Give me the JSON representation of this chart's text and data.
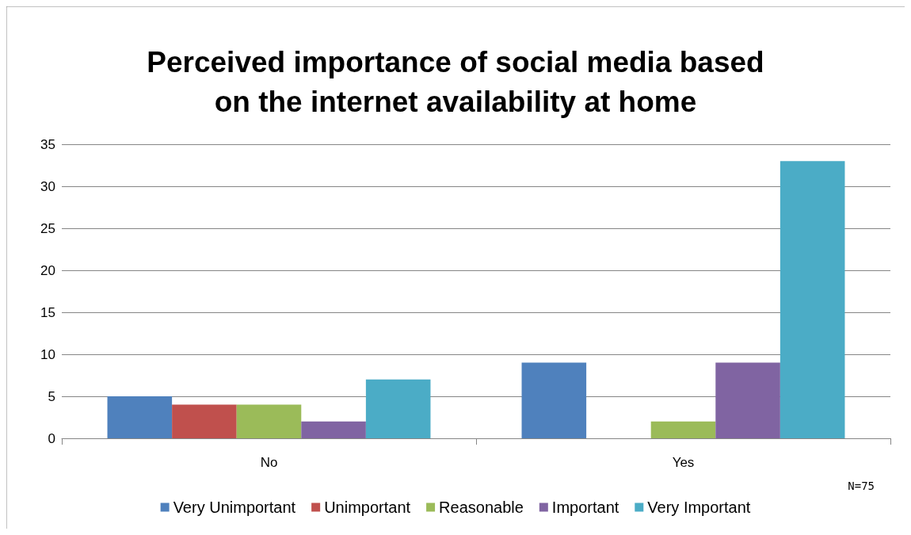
{
  "chart_data": {
    "type": "bar",
    "title": "Perceived importance of social media based\non the internet availability at home",
    "categories": [
      "No",
      "Yes"
    ],
    "series": [
      {
        "name": "Very Unimportant",
        "color": "#4f81bd",
        "values": [
          5,
          9
        ]
      },
      {
        "name": "Unimportant",
        "color": "#c0504d",
        "values": [
          4,
          0
        ]
      },
      {
        "name": "Reasonable",
        "color": "#9bbb59",
        "values": [
          4,
          2
        ]
      },
      {
        "name": "Important",
        "color": "#8064a2",
        "values": [
          2,
          9
        ]
      },
      {
        "name": "Very Important",
        "color": "#4bacc6",
        "values": [
          7,
          33
        ]
      }
    ],
    "ylim": [
      0,
      35
    ],
    "yticks": [
      0,
      5,
      10,
      15,
      20,
      25,
      30,
      35
    ],
    "grid": "y",
    "legend": "bottom",
    "annotations": [
      "N=75"
    ]
  }
}
